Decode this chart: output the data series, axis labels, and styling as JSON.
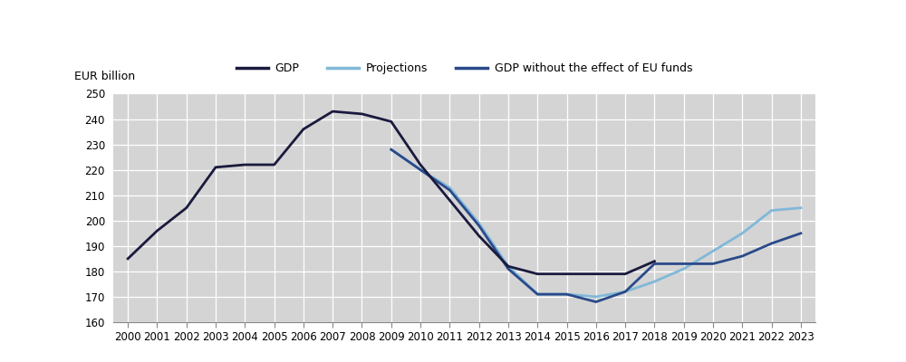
{
  "ylabel": "EUR billion",
  "plot_bg_color": "#d4d4d4",
  "header_bg_color": "#d4d4d4",
  "fig_bg_color": "#ffffff",
  "ylim": [
    160,
    250
  ],
  "yticks": [
    160,
    170,
    180,
    190,
    200,
    210,
    220,
    230,
    240,
    250
  ],
  "xlim": [
    2000,
    2023
  ],
  "xticks": [
    2000,
    2001,
    2002,
    2003,
    2004,
    2005,
    2006,
    2007,
    2008,
    2009,
    2010,
    2011,
    2012,
    2013,
    2014,
    2015,
    2016,
    2017,
    2018,
    2019,
    2020,
    2021,
    2022,
    2023
  ],
  "gdp_years": [
    2000,
    2001,
    2002,
    2003,
    2004,
    2005,
    2006,
    2007,
    2008,
    2009,
    2010,
    2011,
    2012,
    2013,
    2014,
    2015,
    2016,
    2017,
    2018
  ],
  "gdp_values": [
    185,
    196,
    205,
    221,
    222,
    222,
    236,
    243,
    242,
    239,
    222,
    208,
    194,
    182,
    179,
    179,
    179,
    179,
    184
  ],
  "proj_years": [
    2009,
    2010,
    2011,
    2012,
    2013,
    2014,
    2015,
    2016,
    2017,
    2018,
    2019,
    2020,
    2021,
    2022,
    2023
  ],
  "proj_values": [
    228,
    220,
    213,
    199,
    182,
    171,
    171,
    170,
    172,
    176,
    181,
    188,
    195,
    204,
    205
  ],
  "no_eu_years": [
    2009,
    2010,
    2011,
    2012,
    2013,
    2014,
    2015,
    2016,
    2017,
    2018,
    2019,
    2020,
    2021,
    2022,
    2023
  ],
  "no_eu_values": [
    228,
    220,
    212,
    198,
    181,
    171,
    171,
    168,
    172,
    183,
    183,
    183,
    186,
    191,
    195
  ],
  "gdp_color": "#1a1a3e",
  "proj_color": "#80b8d8",
  "no_eu_color": "#2a4a8a",
  "line_width": 2.0,
  "legend_labels": [
    "GDP",
    "Projections",
    "GDP without the effect of EU funds"
  ],
  "tick_fontsize": 8.5,
  "ylabel_fontsize": 9
}
